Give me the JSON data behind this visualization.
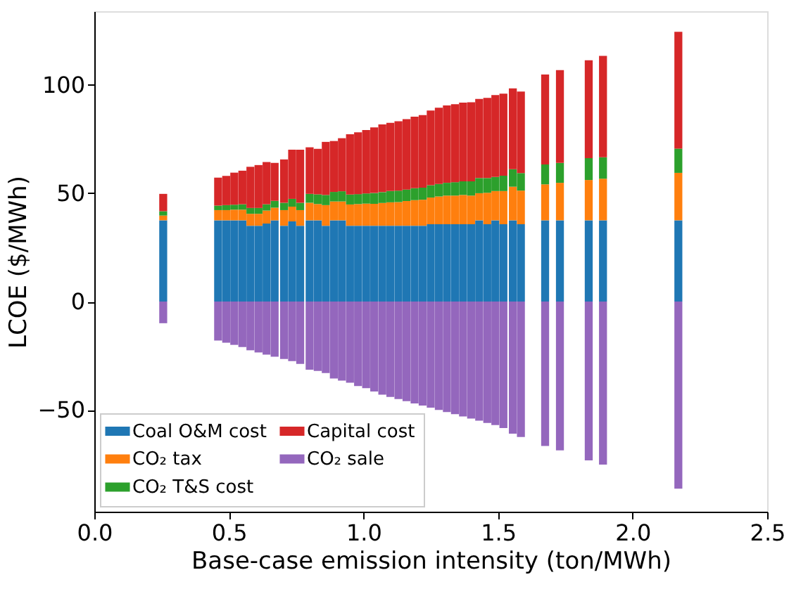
{
  "chart_data": {
    "type": "bar",
    "stacked": true,
    "xlabel": "Base-case emission intensity (ton/MWh)",
    "ylabel": "LCOE ($/MWh)",
    "xlim": [
      0,
      2.5
    ],
    "xticks": [
      {
        "value": 0,
        "label": "0.0"
      },
      0.5,
      {
        "value": 1,
        "label": "1.0"
      },
      1.5,
      {
        "value": 2,
        "label": "2.0"
      },
      2.5
    ],
    "ylim": [
      -97,
      134
    ],
    "yticks": [
      -50,
      0,
      50,
      100
    ],
    "grid": false,
    "legend": "bottom left",
    "x": [
      0.256,
      0.46,
      0.49,
      0.52,
      0.55,
      0.58,
      0.61,
      0.64,
      0.67,
      0.705,
      0.735,
      0.765,
      0.8,
      0.83,
      0.86,
      0.89,
      0.92,
      0.95,
      0.98,
      1.01,
      1.04,
      1.07,
      1.1,
      1.13,
      1.16,
      1.19,
      1.22,
      1.25,
      1.28,
      1.31,
      1.34,
      1.37,
      1.4,
      1.43,
      1.46,
      1.49,
      1.52,
      1.555,
      1.585,
      1.675,
      1.73,
      1.837,
      1.89,
      2.17
    ],
    "series": [
      {
        "name": "Coal O&M cost",
        "color": "#1f77b4",
        "values": [
          37.5,
          37.5,
          37.5,
          37.5,
          37.5,
          35,
          35,
          36,
          37.5,
          35,
          37,
          35,
          37.5,
          37.5,
          35,
          37.5,
          37.5,
          35,
          35,
          35,
          35,
          35,
          35,
          35,
          35,
          35,
          35,
          35.7,
          35.7,
          35.7,
          35.7,
          35.7,
          35.7,
          37.5,
          35.7,
          37.5,
          35.7,
          37.5,
          35.7,
          37.5,
          37.5,
          37.5,
          37.5,
          37.5
        ]
      },
      {
        "name": "CO₂ tax",
        "color": "#ff7f0e",
        "values": [
          2.2,
          4.7,
          4.7,
          4.9,
          4.9,
          5.5,
          5.5,
          6,
          5.8,
          7.2,
          6.8,
          7.2,
          8.1,
          7.5,
          9.5,
          8.7,
          8.7,
          9.8,
          10,
          10.2,
          10.1,
          10.5,
          10.8,
          10.9,
          11.4,
          11.8,
          12,
          12.3,
          12.8,
          13.2,
          13.2,
          13.5,
          13.2,
          12.5,
          14.5,
          13.5,
          15.3,
          15.5,
          15.5,
          16.6,
          17.3,
          18.6,
          19.2,
          21.9
        ]
      },
      {
        "name": "CO₂ T&S cost",
        "color": "#2ca02c",
        "values": [
          2,
          2.1,
          2.3,
          2.3,
          2.5,
          2.7,
          2.7,
          2.9,
          3.2,
          3.4,
          3.6,
          3.4,
          4.1,
          4.5,
          4.7,
          4.4,
          4.7,
          4.6,
          4.6,
          4.7,
          5,
          5,
          5.2,
          5.3,
          5.3,
          5.5,
          5.6,
          5.7,
          5.8,
          5.9,
          6.2,
          6.3,
          6.6,
          7,
          6.8,
          6.5,
          7.1,
          8.1,
          8.1,
          9.2,
          9.2,
          10.1,
          9.9,
          11.2
        ]
      },
      {
        "name": "Capital cost",
        "color": "#d62728",
        "values": [
          8,
          12.9,
          13.5,
          14.8,
          15.5,
          19,
          19.8,
          19.5,
          17.5,
          20,
          22.7,
          24.5,
          21.5,
          21,
          24.5,
          23.5,
          24.5,
          27.8,
          28.5,
          29.3,
          30.3,
          31.3,
          31.5,
          32,
          32.5,
          33,
          33.5,
          34.5,
          35.2,
          35.7,
          36,
          36.3,
          36.5,
          36.5,
          37,
          37.8,
          37.9,
          37.3,
          37.6,
          41.5,
          42.8,
          45.2,
          46.8,
          53.9
        ]
      },
      {
        "name": "CO₂ sale",
        "color": "#9467bd",
        "values": [
          -10,
          -18,
          -19,
          -20,
          -21,
          -22.5,
          -23.5,
          -24.5,
          -25.5,
          -26.5,
          -27.5,
          -28.8,
          -31.5,
          -32,
          -33,
          -35.5,
          -36.5,
          -37.5,
          -39,
          -40,
          -41.5,
          -43,
          -44,
          -45,
          -46,
          -47,
          -48,
          -49,
          -50,
          -51,
          -52,
          -53,
          -54,
          -55,
          -56,
          -57,
          -58.4,
          -61,
          -62.5,
          -66.7,
          -68.7,
          -73.3,
          -75.3,
          -86.4
        ]
      }
    ]
  }
}
